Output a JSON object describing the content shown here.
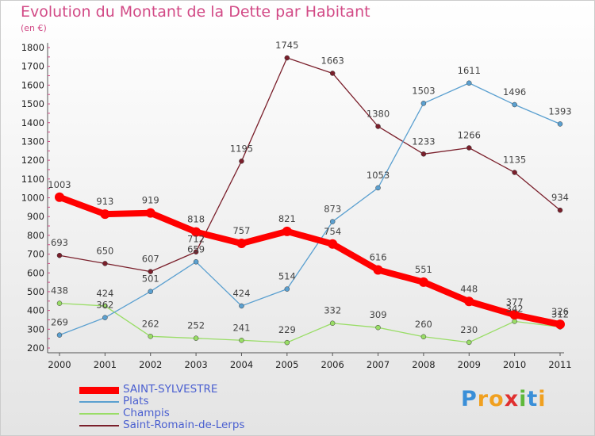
{
  "chart_data": {
    "type": "line",
    "title": "Evolution du Montant de la Dette par Habitant",
    "subtitle": "(en €)",
    "xlabel": "",
    "ylabel": "",
    "x": [
      "2000",
      "2001",
      "2002",
      "2003",
      "2004",
      "2005",
      "2006",
      "2007",
      "2008",
      "2009",
      "2010",
      "2011"
    ],
    "ylim": [
      200,
      1800
    ],
    "yticks": [
      200,
      300,
      400,
      500,
      600,
      700,
      800,
      900,
      1000,
      1100,
      1200,
      1300,
      1400,
      1500,
      1600,
      1700,
      1800
    ],
    "grid": false,
    "legend_position": "bottom-left",
    "series": [
      {
        "name": "Saint-Romain-de-Lerps",
        "color": "#7a1f2b",
        "values": [
          693,
          650,
          607,
          712,
          1195,
          1745,
          1663,
          1380,
          1233,
          1266,
          1135,
          934
        ]
      },
      {
        "name": "Champis",
        "color": "#99dd66",
        "values": [
          438,
          424,
          262,
          252,
          241,
          229,
          332,
          309,
          260,
          230,
          342,
          312
        ]
      },
      {
        "name": "Plats",
        "color": "#5ba0d0",
        "values": [
          269,
          362,
          501,
          659,
          424,
          514,
          873,
          1053,
          1503,
          1611,
          1496,
          1393
        ]
      },
      {
        "name": "SAINT-SYLVESTRE",
        "color": "#ff0000",
        "values": [
          1003,
          913,
          919,
          818,
          757,
          821,
          754,
          616,
          551,
          448,
          377,
          326
        ]
      }
    ]
  },
  "legend_order": [
    "SAINT-SYLVESTRE",
    "Plats",
    "Champis",
    "Saint-Romain-de-Lerps"
  ],
  "logo": {
    "text": "Proxiti",
    "letter_colors": [
      "#3a8fd8",
      "#f0a020",
      "#f0a020",
      "#e03030",
      "#5fb83a",
      "#3a8fd8",
      "#f0a020"
    ]
  }
}
